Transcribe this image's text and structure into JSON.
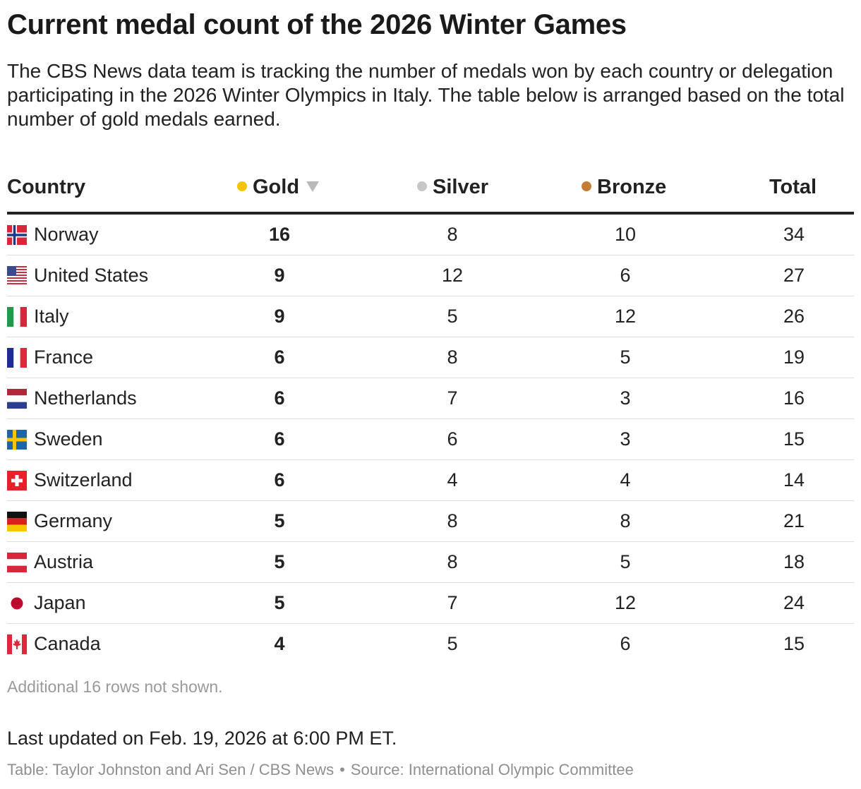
{
  "header": {
    "title": "Current medal count of the 2026 Winter Games",
    "subtitle": "The CBS News data team is tracking the number of medals won by each country or delegation participating in the 2026 Winter Olympics in Italy. The table below is arranged based on the total number of gold medals earned."
  },
  "colors": {
    "gold": "#f5c400",
    "silver": "#c7c7c7",
    "bronze": "#c47d35",
    "sort_arrow": "#b9b9b9"
  },
  "chart_data": {
    "type": "table",
    "title": "Current medal count of the 2026 Winter Games",
    "sorted_by": "Gold",
    "sort_direction": "descending",
    "columns": [
      "Country",
      "Gold",
      "Silver",
      "Bronze",
      "Total"
    ],
    "rows": [
      {
        "country": "Norway",
        "flag": "norway-flag",
        "gold": 16,
        "silver": 8,
        "bronze": 10,
        "total": 34
      },
      {
        "country": "United States",
        "flag": "united-states-flag",
        "gold": 9,
        "silver": 12,
        "bronze": 6,
        "total": 27
      },
      {
        "country": "Italy",
        "flag": "italy-flag",
        "gold": 9,
        "silver": 5,
        "bronze": 12,
        "total": 26
      },
      {
        "country": "France",
        "flag": "france-flag",
        "gold": 6,
        "silver": 8,
        "bronze": 5,
        "total": 19
      },
      {
        "country": "Netherlands",
        "flag": "netherlands-flag",
        "gold": 6,
        "silver": 7,
        "bronze": 3,
        "total": 16
      },
      {
        "country": "Sweden",
        "flag": "sweden-flag",
        "gold": 6,
        "silver": 6,
        "bronze": 3,
        "total": 15
      },
      {
        "country": "Switzerland",
        "flag": "switzerland-flag",
        "gold": 6,
        "silver": 4,
        "bronze": 4,
        "total": 14
      },
      {
        "country": "Germany",
        "flag": "germany-flag",
        "gold": 5,
        "silver": 8,
        "bronze": 8,
        "total": 21
      },
      {
        "country": "Austria",
        "flag": "austria-flag",
        "gold": 5,
        "silver": 8,
        "bronze": 5,
        "total": 18
      },
      {
        "country": "Japan",
        "flag": "japan-flag",
        "gold": 5,
        "silver": 7,
        "bronze": 12,
        "total": 24
      },
      {
        "country": "Canada",
        "flag": "canada-flag",
        "gold": 4,
        "silver": 5,
        "bronze": 6,
        "total": 15
      }
    ]
  },
  "footer": {
    "rows_note": "Additional 16 rows not shown.",
    "updated": "Last updated on Feb. 19, 2026 at 6:00 PM ET.",
    "credit": "Table: Taylor Johnston and Ari Sen / CBS News",
    "separator": "•",
    "source": "Source: International Olympic Committee"
  }
}
